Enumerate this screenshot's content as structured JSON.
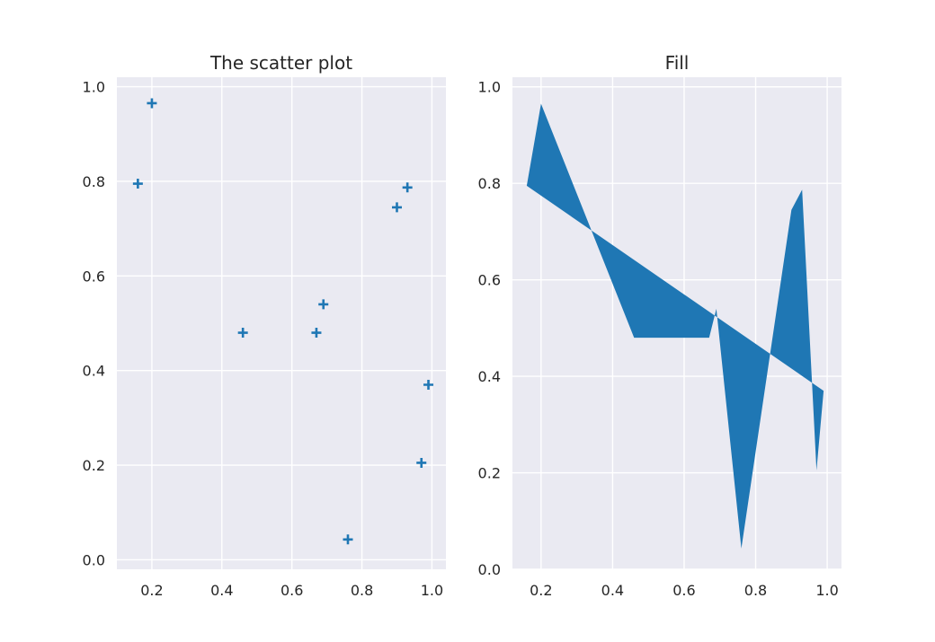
{
  "colors": {
    "series": "#1f77b4",
    "axes_bg": "#eaeaf2",
    "grid": "#ffffff",
    "text": "#262626"
  },
  "chart_data": [
    {
      "type": "scatter",
      "title": "The scatter plot",
      "marker": "plus",
      "xlim": [
        0.1,
        1.04
      ],
      "ylim": [
        -0.02,
        1.02
      ],
      "xticks": [
        0.2,
        0.4,
        0.6,
        0.8,
        1.0
      ],
      "yticks": [
        0.0,
        0.2,
        0.4,
        0.6,
        0.8,
        1.0
      ],
      "xtick_labels": [
        "0.2",
        "0.4",
        "0.6",
        "0.8",
        "1.0"
      ],
      "ytick_labels": [
        "0.0",
        "0.2",
        "0.4",
        "0.6",
        "0.8",
        "1.0"
      ],
      "grid": true,
      "x": [
        0.16,
        0.2,
        0.46,
        0.67,
        0.69,
        0.76,
        0.9,
        0.93,
        0.97,
        0.99
      ],
      "y": [
        0.795,
        0.965,
        0.48,
        0.48,
        0.54,
        0.043,
        0.745,
        0.787,
        0.205,
        0.37
      ]
    },
    {
      "type": "area",
      "title": "Fill",
      "xlim": [
        0.12,
        1.04
      ],
      "ylim": [
        0.0,
        1.02
      ],
      "xticks": [
        0.2,
        0.4,
        0.6,
        0.8,
        1.0
      ],
      "yticks": [
        0.0,
        0.2,
        0.4,
        0.6,
        0.8,
        1.0
      ],
      "xtick_labels": [
        "0.2",
        "0.4",
        "0.6",
        "0.8",
        "1.0"
      ],
      "ytick_labels": [
        "0.0",
        "0.2",
        "0.4",
        "0.6",
        "0.8",
        "1.0"
      ],
      "grid": true,
      "polygon_x": [
        0.16,
        0.2,
        0.46,
        0.67,
        0.69,
        0.76,
        0.9,
        0.93,
        0.97,
        0.99
      ],
      "polygon_y": [
        0.795,
        0.965,
        0.48,
        0.48,
        0.54,
        0.043,
        0.745,
        0.787,
        0.205,
        0.37
      ]
    }
  ]
}
